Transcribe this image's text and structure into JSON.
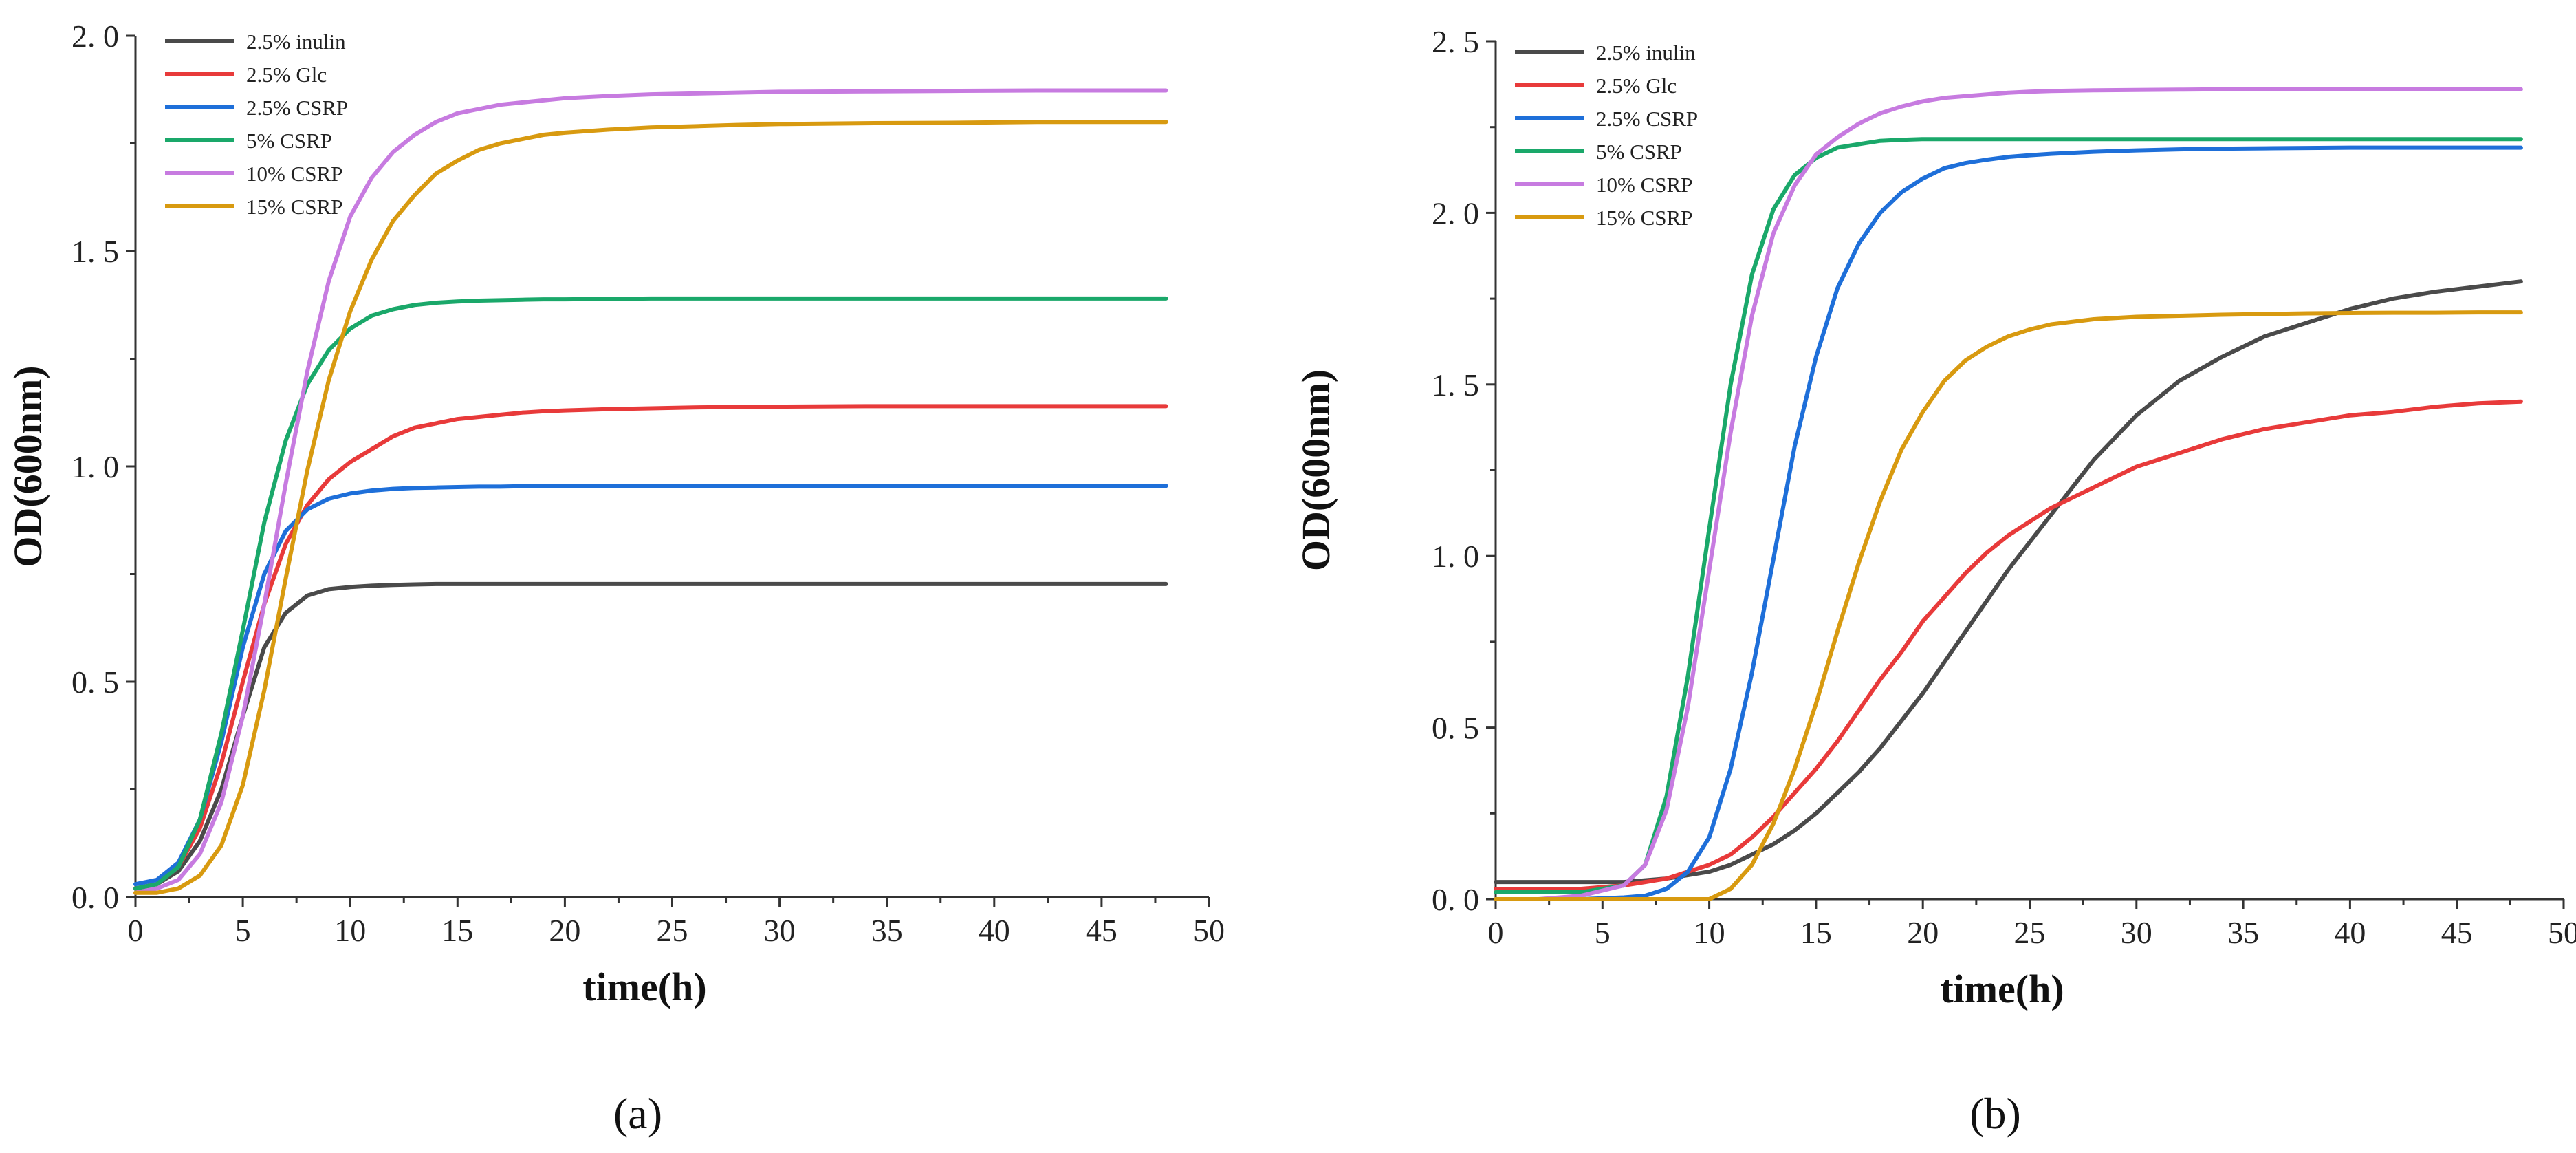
{
  "chart_data": [
    {
      "type": "line",
      "panel_label": "(a)",
      "xlabel": "time(h)",
      "ylabel": "OD(600nm)",
      "xlim": [
        0,
        50
      ],
      "ylim": [
        0,
        2.0
      ],
      "xticks": [
        0,
        5,
        10,
        15,
        20,
        25,
        30,
        35,
        40,
        45,
        50
      ],
      "yticks": [
        0.0,
        0.5,
        1.0,
        1.5,
        2.0
      ],
      "ytick_labels": [
        "0. 0",
        "0. 5",
        "1. 0",
        "1. 5",
        "2. 0"
      ],
      "legend_position": "top-left",
      "x": [
        0,
        1,
        2,
        3,
        4,
        5,
        6,
        7,
        8,
        9,
        10,
        11,
        12,
        13,
        14,
        15,
        16,
        17,
        18,
        19,
        20,
        22,
        24,
        26,
        28,
        30,
        34,
        38,
        42,
        46,
        48
      ],
      "series": [
        {
          "name": "2.5% inulin",
          "color": "#4a4a4a",
          "values": [
            0.02,
            0.03,
            0.06,
            0.13,
            0.25,
            0.42,
            0.58,
            0.66,
            0.7,
            0.715,
            0.72,
            0.723,
            0.725,
            0.726,
            0.727,
            0.727,
            0.727,
            0.727,
            0.727,
            0.727,
            0.727,
            0.727,
            0.727,
            0.727,
            0.727,
            0.727,
            0.727,
            0.727,
            0.727,
            0.727,
            0.727
          ]
        },
        {
          "name": "2.5% Glc",
          "color": "#e83a3a",
          "values": [
            0.02,
            0.03,
            0.07,
            0.16,
            0.31,
            0.5,
            0.68,
            0.82,
            0.91,
            0.97,
            1.01,
            1.04,
            1.07,
            1.09,
            1.1,
            1.11,
            1.115,
            1.12,
            1.125,
            1.128,
            1.13,
            1.133,
            1.135,
            1.137,
            1.138,
            1.139,
            1.14,
            1.14,
            1.14,
            1.14,
            1.14
          ]
        },
        {
          "name": "2.5% CSRP",
          "color": "#1e6fd9",
          "values": [
            0.03,
            0.04,
            0.08,
            0.18,
            0.36,
            0.58,
            0.75,
            0.85,
            0.9,
            0.925,
            0.937,
            0.944,
            0.948,
            0.95,
            0.951,
            0.952,
            0.953,
            0.953,
            0.954,
            0.954,
            0.954,
            0.955,
            0.955,
            0.955,
            0.955,
            0.955,
            0.955,
            0.955,
            0.955,
            0.955,
            0.955
          ]
        },
        {
          "name": "5% CSRP",
          "color": "#1aa86a",
          "values": [
            0.02,
            0.03,
            0.07,
            0.18,
            0.38,
            0.62,
            0.87,
            1.06,
            1.19,
            1.27,
            1.32,
            1.35,
            1.365,
            1.375,
            1.38,
            1.383,
            1.385,
            1.386,
            1.387,
            1.388,
            1.388,
            1.389,
            1.39,
            1.39,
            1.39,
            1.39,
            1.39,
            1.39,
            1.39,
            1.39,
            1.39
          ]
        },
        {
          "name": "10% CSRP",
          "color": "#c77be0",
          "values": [
            0.01,
            0.02,
            0.04,
            0.1,
            0.22,
            0.42,
            0.68,
            0.96,
            1.22,
            1.43,
            1.58,
            1.67,
            1.73,
            1.77,
            1.8,
            1.82,
            1.83,
            1.84,
            1.845,
            1.85,
            1.855,
            1.86,
            1.864,
            1.866,
            1.868,
            1.87,
            1.871,
            1.872,
            1.873,
            1.873,
            1.873
          ]
        },
        {
          "name": "15% CSRP",
          "color": "#d89a10",
          "values": [
            0.01,
            0.01,
            0.02,
            0.05,
            0.12,
            0.26,
            0.48,
            0.74,
            0.99,
            1.2,
            1.36,
            1.48,
            1.57,
            1.63,
            1.68,
            1.71,
            1.735,
            1.75,
            1.76,
            1.77,
            1.775,
            1.782,
            1.787,
            1.79,
            1.793,
            1.795,
            1.797,
            1.798,
            1.8,
            1.8,
            1.8
          ]
        }
      ]
    },
    {
      "type": "line",
      "panel_label": "(b)",
      "xlabel": "time(h)",
      "ylabel": "OD(600nm)",
      "xlim": [
        0,
        50
      ],
      "ylim": [
        0,
        2.5
      ],
      "xticks": [
        0,
        5,
        10,
        15,
        20,
        25,
        30,
        35,
        40,
        45,
        50
      ],
      "yticks": [
        0.0,
        0.5,
        1.0,
        1.5,
        2.0,
        2.5
      ],
      "ytick_labels": [
        "0. 0",
        "0. 5",
        "1. 0",
        "1. 5",
        "2. 0",
        "2. 5"
      ],
      "legend_position": "top-left",
      "x": [
        0,
        2,
        4,
        6,
        7,
        8,
        9,
        10,
        11,
        12,
        13,
        14,
        15,
        16,
        17,
        18,
        19,
        20,
        21,
        22,
        23,
        24,
        25,
        26,
        28,
        30,
        32,
        34,
        36,
        38,
        40,
        42,
        44,
        46,
        48
      ],
      "series": [
        {
          "name": "2.5% inulin",
          "color": "#4a4a4a",
          "values": [
            0.05,
            0.05,
            0.05,
            0.05,
            0.055,
            0.06,
            0.07,
            0.08,
            0.1,
            0.13,
            0.16,
            0.2,
            0.25,
            0.31,
            0.37,
            0.44,
            0.52,
            0.6,
            0.69,
            0.78,
            0.87,
            0.96,
            1.04,
            1.12,
            1.28,
            1.41,
            1.51,
            1.58,
            1.64,
            1.68,
            1.72,
            1.75,
            1.77,
            1.785,
            1.8
          ]
        },
        {
          "name": "2.5% Glc",
          "color": "#e83a3a",
          "values": [
            0.03,
            0.03,
            0.03,
            0.04,
            0.05,
            0.06,
            0.08,
            0.1,
            0.13,
            0.18,
            0.24,
            0.31,
            0.38,
            0.46,
            0.55,
            0.64,
            0.72,
            0.81,
            0.88,
            0.95,
            1.01,
            1.06,
            1.1,
            1.14,
            1.2,
            1.26,
            1.3,
            1.34,
            1.37,
            1.39,
            1.41,
            1.42,
            1.435,
            1.445,
            1.45
          ]
        },
        {
          "name": "2.5% CSRP",
          "color": "#1e6fd9",
          "values": [
            0.0,
            0.0,
            0.0,
            0.005,
            0.01,
            0.03,
            0.08,
            0.18,
            0.38,
            0.66,
            0.99,
            1.32,
            1.58,
            1.78,
            1.91,
            2.0,
            2.06,
            2.1,
            2.13,
            2.145,
            2.155,
            2.163,
            2.168,
            2.172,
            2.178,
            2.182,
            2.185,
            2.187,
            2.188,
            2.189,
            2.19,
            2.19,
            2.19,
            2.19,
            2.19
          ]
        },
        {
          "name": "5% CSRP",
          "color": "#1aa86a",
          "values": [
            0.02,
            0.02,
            0.02,
            0.04,
            0.1,
            0.3,
            0.65,
            1.08,
            1.5,
            1.82,
            2.01,
            2.11,
            2.16,
            2.19,
            2.2,
            2.21,
            2.213,
            2.215,
            2.215,
            2.215,
            2.215,
            2.215,
            2.215,
            2.215,
            2.215,
            2.215,
            2.215,
            2.215,
            2.215,
            2.215,
            2.215,
            2.215,
            2.215,
            2.215,
            2.215
          ]
        },
        {
          "name": "10% CSRP",
          "color": "#c77be0",
          "values": [
            0.0,
            0.0,
            0.01,
            0.04,
            0.1,
            0.26,
            0.56,
            0.96,
            1.36,
            1.7,
            1.94,
            2.08,
            2.17,
            2.22,
            2.26,
            2.29,
            2.31,
            2.325,
            2.335,
            2.34,
            2.345,
            2.35,
            2.353,
            2.355,
            2.357,
            2.358,
            2.359,
            2.36,
            2.36,
            2.36,
            2.36,
            2.36,
            2.36,
            2.36,
            2.36
          ]
        },
        {
          "name": "15% CSRP",
          "color": "#d89a10",
          "values": [
            0.0,
            0.0,
            0.0,
            0.0,
            0.0,
            0.0,
            0.0,
            0.0,
            0.03,
            0.1,
            0.22,
            0.38,
            0.57,
            0.78,
            0.98,
            1.16,
            1.31,
            1.42,
            1.51,
            1.57,
            1.61,
            1.64,
            1.66,
            1.675,
            1.69,
            1.697,
            1.7,
            1.703,
            1.705,
            1.707,
            1.708,
            1.709,
            1.709,
            1.71,
            1.71
          ]
        }
      ]
    }
  ]
}
